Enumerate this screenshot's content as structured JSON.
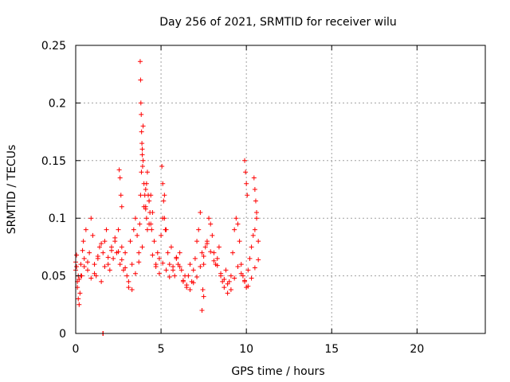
{
  "chart_data": {
    "type": "scatter",
    "title": "Day 256 of 2021, SRMTID for receiver wilu",
    "xlabel": "GPS time / hours",
    "ylabel": "SRMTID / TECUs",
    "xlim": [
      0,
      24
    ],
    "ylim": [
      0,
      0.25
    ],
    "x_ticks": [
      0,
      5,
      10,
      15,
      20
    ],
    "x_tick_labels": [
      "0",
      "5",
      "10",
      "15",
      "20"
    ],
    "y_ticks": [
      0,
      0.05,
      0.1,
      0.15,
      0.2,
      0.25
    ],
    "y_tick_labels": [
      "0",
      "0.05",
      "0.1",
      "0.15",
      "0.2",
      "0.25"
    ],
    "grid": true,
    "marker": "+",
    "color": "#ff0000",
    "series": [
      {
        "x": [
          0.0,
          0.05,
          0.1,
          0.15,
          0.2,
          0.25,
          0.3,
          0.35,
          0.4,
          0.45,
          0.5,
          0.6,
          0.7,
          0.8,
          0.9,
          1.0,
          1.1,
          1.2,
          1.3,
          1.4,
          1.5,
          1.6,
          1.7,
          1.8,
          1.9,
          2.0,
          2.1,
          2.2,
          2.3,
          2.4,
          2.5,
          2.6,
          2.7,
          2.8,
          2.9,
          3.0,
          3.1,
          3.2,
          3.3,
          3.4,
          3.5,
          3.6,
          3.7,
          3.75,
          3.8,
          3.85,
          3.9,
          3.95,
          4.0,
          4.05,
          4.1,
          4.15,
          4.2,
          4.3,
          4.4,
          4.5,
          4.6,
          4.7,
          4.8,
          4.9,
          5.0,
          5.1,
          5.2,
          5.3,
          5.4,
          5.5,
          5.6,
          5.7,
          5.8,
          5.9,
          6.0,
          6.1,
          6.2,
          6.3,
          6.4,
          6.5,
          6.6,
          6.7,
          6.8,
          6.9,
          7.0,
          7.1,
          7.2,
          7.3,
          7.4,
          7.5,
          7.6,
          7.7,
          7.8,
          7.9,
          8.0,
          8.1,
          8.2,
          8.3,
          8.4,
          8.5,
          8.6,
          8.7,
          8.8,
          8.9,
          9.0,
          9.1,
          9.2,
          9.3,
          9.4,
          9.5,
          9.6,
          9.7,
          9.8,
          9.9,
          10.0,
          10.1,
          10.2,
          10.3,
          10.4,
          10.5,
          10.6,
          10.7,
          0.1,
          0.3,
          0.5,
          0.7,
          0.9,
          1.1,
          1.3,
          1.5,
          1.7,
          1.9,
          2.1,
          2.3,
          2.5,
          2.7,
          2.9,
          3.1,
          3.3,
          3.5,
          3.7,
          3.9,
          4.1,
          4.3,
          4.5,
          4.7,
          4.9,
          5.1,
          5.3,
          5.5,
          5.7,
          5.9,
          6.1,
          6.3,
          6.5,
          6.7,
          6.9,
          7.1,
          7.3,
          7.5,
          7.7,
          7.9,
          8.1,
          8.3,
          8.5,
          8.7,
          8.9,
          9.1,
          9.3,
          9.5,
          9.7,
          9.9,
          10.1,
          10.3,
          10.5,
          10.7,
          3.78,
          3.8,
          3.82,
          3.84,
          3.86,
          3.88,
          3.9,
          3.92,
          3.95,
          4.0,
          4.1,
          4.15,
          4.2,
          4.25,
          4.3,
          4.35,
          4.4,
          4.45,
          2.55,
          2.6,
          2.65,
          2.7,
          5.05,
          5.1,
          5.15,
          5.2,
          5.25,
          9.9,
          9.95,
          10.0,
          10.05,
          10.45,
          10.5,
          10.55,
          10.6,
          7.4,
          7.5,
          7.45,
          0.0,
          0.05,
          0.15,
          0.2,
          1.6,
          1.6,
          1.6
        ],
        "y": [
          0.055,
          0.068,
          0.045,
          0.03,
          0.025,
          0.035,
          0.06,
          0.05,
          0.072,
          0.08,
          0.065,
          0.09,
          0.055,
          0.07,
          0.1,
          0.085,
          0.06,
          0.05,
          0.065,
          0.075,
          0.045,
          0.07,
          0.08,
          0.09,
          0.06,
          0.055,
          0.075,
          0.065,
          0.08,
          0.07,
          0.09,
          0.06,
          0.075,
          0.055,
          0.07,
          0.05,
          0.04,
          0.08,
          0.06,
          0.09,
          0.1,
          0.085,
          0.07,
          0.095,
          0.12,
          0.14,
          0.16,
          0.18,
          0.13,
          0.12,
          0.11,
          0.1,
          0.09,
          0.115,
          0.12,
          0.105,
          0.08,
          0.06,
          0.07,
          0.065,
          0.085,
          0.1,
          0.12,
          0.09,
          0.07,
          0.06,
          0.075,
          0.055,
          0.05,
          0.065,
          0.06,
          0.07,
          0.055,
          0.045,
          0.05,
          0.04,
          0.05,
          0.06,
          0.045,
          0.055,
          0.065,
          0.08,
          0.09,
          0.105,
          0.07,
          0.06,
          0.075,
          0.08,
          0.1,
          0.095,
          0.085,
          0.07,
          0.06,
          0.065,
          0.075,
          0.05,
          0.045,
          0.04,
          0.055,
          0.035,
          0.045,
          0.05,
          0.07,
          0.09,
          0.1,
          0.095,
          0.08,
          0.06,
          0.05,
          0.045,
          0.04,
          0.055,
          0.065,
          0.075,
          0.085,
          0.09,
          0.1,
          0.08,
          0.04,
          0.05,
          0.058,
          0.062,
          0.048,
          0.052,
          0.067,
          0.078,
          0.058,
          0.066,
          0.072,
          0.083,
          0.071,
          0.064,
          0.057,
          0.045,
          0.038,
          0.052,
          0.062,
          0.075,
          0.108,
          0.095,
          0.068,
          0.058,
          0.052,
          0.061,
          0.055,
          0.049,
          0.058,
          0.066,
          0.058,
          0.046,
          0.042,
          0.038,
          0.044,
          0.049,
          0.058,
          0.067,
          0.078,
          0.071,
          0.063,
          0.059,
          0.052,
          0.047,
          0.043,
          0.038,
          0.048,
          0.058,
          0.052,
          0.046,
          0.041,
          0.048,
          0.057,
          0.064,
          0.236,
          0.22,
          0.2,
          0.19,
          0.175,
          0.165,
          0.155,
          0.145,
          0.15,
          0.11,
          0.125,
          0.13,
          0.14,
          0.12,
          0.115,
          0.105,
          0.095,
          0.09,
          0.142,
          0.135,
          0.12,
          0.11,
          0.145,
          0.13,
          0.115,
          0.1,
          0.09,
          0.15,
          0.14,
          0.13,
          0.12,
          0.135,
          0.125,
          0.115,
          0.105,
          0.02,
          0.032,
          0.038,
          0.062,
          0.058,
          0.05,
          0.047,
          0.0,
          0.0,
          0.0
        ]
      }
    ]
  }
}
